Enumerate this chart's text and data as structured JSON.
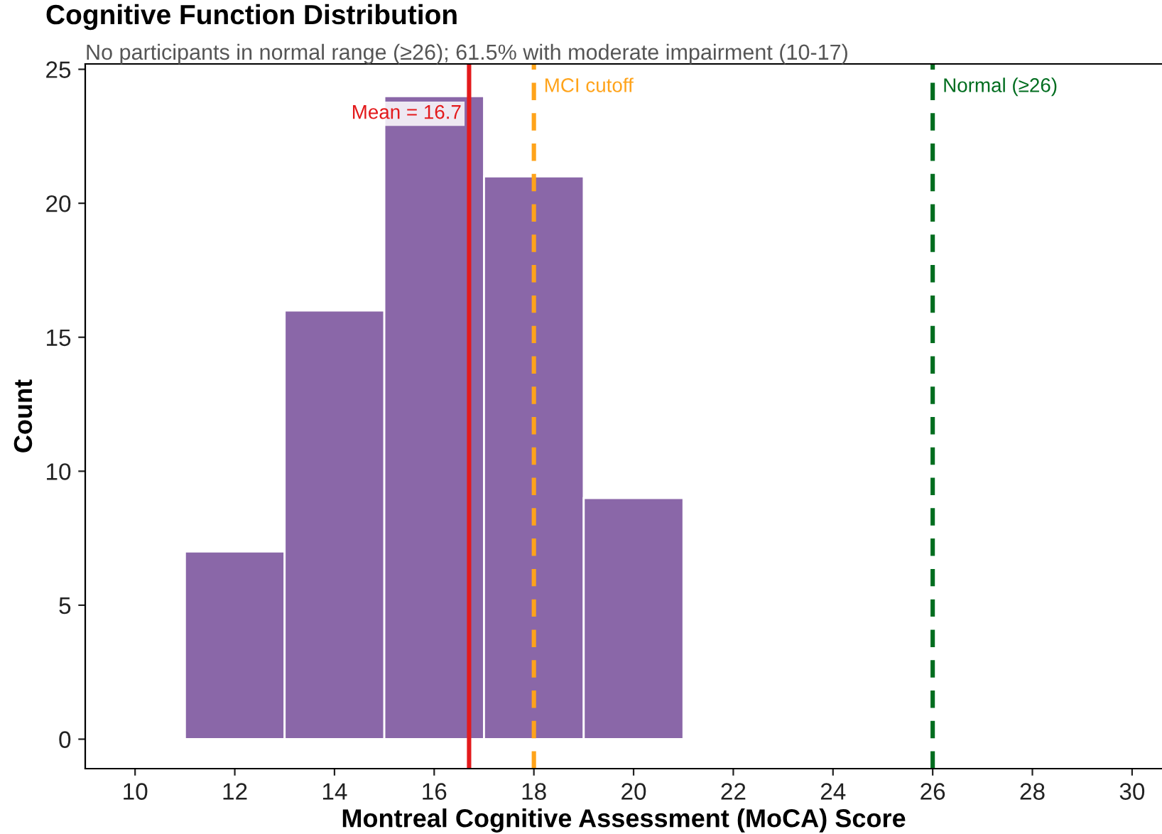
{
  "chart_data": {
    "type": "histogram",
    "title": "Cognitive Function Distribution",
    "subtitle": "No participants in normal range (≥26); 61.5% with moderate impairment (10-17)",
    "xlabel": "Montreal Cognitive Assessment (MoCA) Score",
    "ylabel": "Count",
    "bins": [
      11,
      13,
      15,
      17,
      19,
      21
    ],
    "values": [
      7,
      16,
      24,
      21,
      9
    ],
    "color": "#8a67a8",
    "xlim": [
      9,
      30.6
    ],
    "xticks": [
      10,
      12,
      14,
      16,
      18,
      20,
      22,
      24,
      26,
      28,
      30
    ],
    "ylim": [
      -1.1,
      25.2
    ],
    "yticks": [
      0,
      5,
      10,
      15,
      20,
      25
    ],
    "grid": false,
    "ref_lines": [
      {
        "axis": "x",
        "value": 16.7,
        "label": "Mean = 16.7",
        "color": "#e31a1c",
        "line_style": "solid"
      },
      {
        "axis": "x",
        "value": 18,
        "label": "MCI cutoff",
        "color": "#ffa31a",
        "line_style": "dashed"
      },
      {
        "axis": "x",
        "value": 26,
        "label": "Normal (≥26)",
        "color": "#006d1f",
        "line_style": "dashed"
      }
    ]
  }
}
